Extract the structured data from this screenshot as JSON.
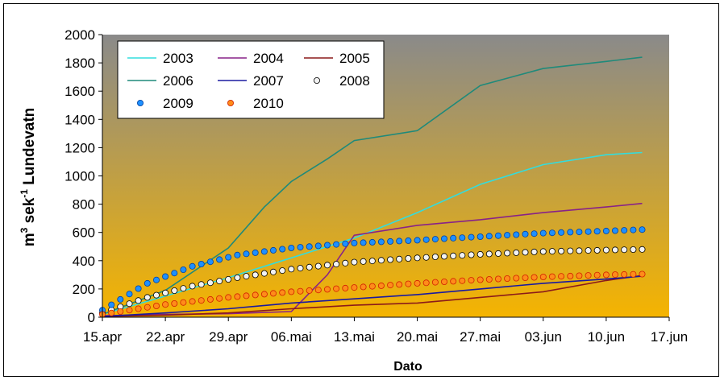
{
  "chart_data": {
    "type": "line",
    "xlabel": "Dato",
    "ylabel_main": "m",
    "ylabel_sup1": "3",
    "ylabel_mid": " sek",
    "ylabel_sup2": "-1",
    "ylabel_tail": " Lundevatn",
    "x_ticks": [
      "15.apr",
      "22.apr",
      "29.apr",
      "06.mai",
      "13.mai",
      "20.mai",
      "27.mai",
      "03.jun",
      "10.jun",
      "17.jun"
    ],
    "xlim": [
      "15.apr",
      "17.jun"
    ],
    "ylim": [
      0,
      2000
    ],
    "y_ticks": [
      0,
      200,
      400,
      600,
      800,
      1000,
      1200,
      1400,
      1600,
      1800,
      2000
    ],
    "background": {
      "gradient_top": "#8a8a8a",
      "gradient_bottom": "#f5b400"
    },
    "legend_position": "top-left",
    "series": [
      {
        "name": "2003",
        "style": "line",
        "color": "#33dddd",
        "points": [
          [
            "15.apr",
            20
          ],
          [
            "22.apr",
            150
          ],
          [
            "29.apr",
            280
          ],
          [
            "06.mai",
            420
          ],
          [
            "13.mai",
            560
          ],
          [
            "20.mai",
            740
          ],
          [
            "27.mai",
            940
          ],
          [
            "03.jun",
            1080
          ],
          [
            "10.jun",
            1150
          ],
          [
            "14.jun",
            1165
          ]
        ]
      },
      {
        "name": "2004",
        "style": "line",
        "color": "#882288",
        "points": [
          [
            "15.apr",
            10
          ],
          [
            "22.apr",
            20
          ],
          [
            "29.apr",
            25
          ],
          [
            "06.mai",
            40
          ],
          [
            "10.mai",
            300
          ],
          [
            "13.mai",
            580
          ],
          [
            "20.mai",
            650
          ],
          [
            "27.mai",
            690
          ],
          [
            "03.jun",
            740
          ],
          [
            "10.jun",
            780
          ],
          [
            "14.jun",
            805
          ]
        ]
      },
      {
        "name": "2005",
        "style": "line",
        "color": "#8b1a1a",
        "points": [
          [
            "15.apr",
            5
          ],
          [
            "22.apr",
            15
          ],
          [
            "29.apr",
            30
          ],
          [
            "06.mai",
            60
          ],
          [
            "13.mai",
            85
          ],
          [
            "20.mai",
            100
          ],
          [
            "27.mai",
            140
          ],
          [
            "03.jun",
            180
          ],
          [
            "10.jun",
            260
          ],
          [
            "14.jun",
            295
          ]
        ]
      },
      {
        "name": "2006",
        "style": "line",
        "color": "#1f8a7a",
        "points": [
          [
            "15.apr",
            20
          ],
          [
            "22.apr",
            190
          ],
          [
            "29.apr",
            490
          ],
          [
            "03.mai",
            780
          ],
          [
            "06.mai",
            960
          ],
          [
            "10.mai",
            1120
          ],
          [
            "13.mai",
            1250
          ],
          [
            "20.mai",
            1320
          ],
          [
            "27.mai",
            1640
          ],
          [
            "03.jun",
            1760
          ],
          [
            "10.jun",
            1810
          ],
          [
            "14.jun",
            1840
          ]
        ]
      },
      {
        "name": "2007",
        "style": "line",
        "color": "#1a1aa0",
        "points": [
          [
            "15.apr",
            5
          ],
          [
            "22.apr",
            30
          ],
          [
            "29.apr",
            60
          ],
          [
            "06.mai",
            100
          ],
          [
            "13.mai",
            130
          ],
          [
            "20.mai",
            160
          ],
          [
            "27.mai",
            200
          ],
          [
            "03.jun",
            240
          ],
          [
            "10.jun",
            270
          ],
          [
            "14.jun",
            290
          ]
        ]
      },
      {
        "name": "2008",
        "style": "marker",
        "color": "#f2f2f2",
        "stroke": "#000000",
        "points": [
          [
            "15.apr",
            30
          ],
          [
            "20.apr",
            140
          ],
          [
            "25.apr",
            220
          ],
          [
            "30.apr",
            280
          ],
          [
            "06.mai",
            340
          ],
          [
            "13.mai",
            390
          ],
          [
            "20.mai",
            420
          ],
          [
            "27.mai",
            445
          ],
          [
            "03.jun",
            465
          ],
          [
            "10.jun",
            475
          ],
          [
            "14.jun",
            480
          ]
        ]
      },
      {
        "name": "2009",
        "style": "marker",
        "color": "#1e90ff",
        "stroke": "#0040a0",
        "points": [
          [
            "15.apr",
            50
          ],
          [
            "20.apr",
            240
          ],
          [
            "25.apr",
            360
          ],
          [
            "30.apr",
            440
          ],
          [
            "06.mai",
            490
          ],
          [
            "13.mai",
            525
          ],
          [
            "20.mai",
            545
          ],
          [
            "27.mai",
            570
          ],
          [
            "03.jun",
            595
          ],
          [
            "10.jun",
            610
          ],
          [
            "14.jun",
            620
          ]
        ]
      },
      {
        "name": "2010",
        "style": "marker",
        "color": "#ff8c1a",
        "stroke": "#d02000",
        "points": [
          [
            "15.apr",
            20
          ],
          [
            "22.apr",
            90
          ],
          [
            "29.apr",
            140
          ],
          [
            "06.mai",
            180
          ],
          [
            "13.mai",
            210
          ],
          [
            "20.mai",
            240
          ],
          [
            "27.mai",
            265
          ],
          [
            "03.jun",
            285
          ],
          [
            "10.jun",
            300
          ],
          [
            "14.jun",
            305
          ]
        ]
      }
    ]
  }
}
